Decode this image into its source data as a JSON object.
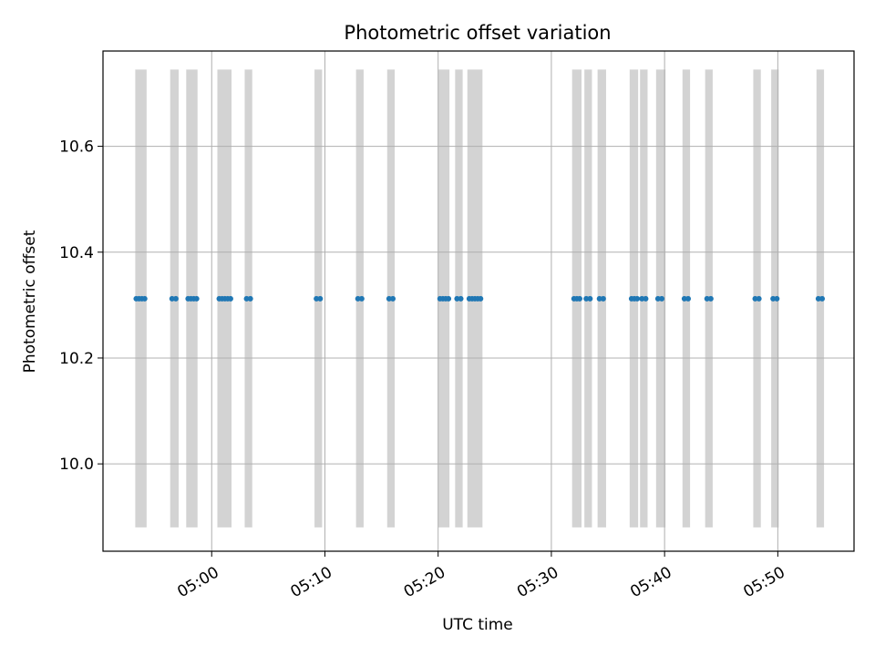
{
  "chart_data": {
    "type": "scatter",
    "title": "Photometric offset variation",
    "xlabel": "UTC time",
    "ylabel": "Photometric offset",
    "x_is_time": true,
    "xlim": [
      "04:50:24",
      "05:56:44"
    ],
    "ylim": [
      9.835,
      10.78
    ],
    "x_ticks": [
      "05:00",
      "05:10",
      "05:20",
      "05:30",
      "05:40",
      "05:50"
    ],
    "y_ticks": [
      10.0,
      10.2,
      10.4,
      10.6
    ],
    "y_tick_labels": [
      "10.0",
      "10.2",
      "10.4",
      "10.6"
    ],
    "grid": true,
    "colors": {
      "points": "#1f77b4",
      "bands": "#d3d3d3",
      "grid": "#b0b0b0"
    },
    "bands_ylim": [
      9.88,
      10.745
    ],
    "bands": [
      {
        "start": "04:53:15",
        "end": "04:54:15"
      },
      {
        "start": "04:56:20",
        "end": "04:57:05"
      },
      {
        "start": "04:57:45",
        "end": "04:58:45"
      },
      {
        "start": "05:00:30",
        "end": "05:01:45"
      },
      {
        "start": "05:02:55",
        "end": "05:03:35"
      },
      {
        "start": "05:09:05",
        "end": "05:09:45"
      },
      {
        "start": "05:12:45",
        "end": "05:13:25"
      },
      {
        "start": "05:15:30",
        "end": "05:16:10"
      },
      {
        "start": "05:20:00",
        "end": "05:21:00"
      },
      {
        "start": "05:21:30",
        "end": "05:22:10"
      },
      {
        "start": "05:22:35",
        "end": "05:23:55"
      },
      {
        "start": "05:31:50",
        "end": "05:32:40"
      },
      {
        "start": "05:32:55",
        "end": "05:33:35"
      },
      {
        "start": "05:34:05",
        "end": "05:34:50"
      },
      {
        "start": "05:36:55",
        "end": "05:37:40"
      },
      {
        "start": "05:37:50",
        "end": "05:38:30"
      },
      {
        "start": "05:39:15",
        "end": "05:40:05"
      },
      {
        "start": "05:41:35",
        "end": "05:42:15"
      },
      {
        "start": "05:43:35",
        "end": "05:44:15"
      },
      {
        "start": "05:47:50",
        "end": "05:48:30"
      },
      {
        "start": "05:49:25",
        "end": "05:50:05"
      },
      {
        "start": "05:53:25",
        "end": "05:54:05"
      }
    ],
    "series": [
      {
        "y_value": 10.312,
        "x": [
          "04:53:20",
          "04:53:35",
          "04:53:50",
          "04:54:05",
          "04:56:30",
          "04:56:50",
          "04:57:55",
          "04:58:10",
          "04:58:25",
          "04:58:40",
          "05:00:40",
          "05:00:55",
          "05:01:10",
          "05:01:25",
          "05:01:40",
          "05:03:05",
          "05:03:25",
          "05:09:15",
          "05:09:35",
          "05:12:55",
          "05:13:15",
          "05:15:40",
          "05:16:00",
          "05:20:10",
          "05:20:25",
          "05:20:40",
          "05:20:55",
          "05:21:40",
          "05:22:00",
          "05:22:45",
          "05:23:00",
          "05:23:15",
          "05:23:30",
          "05:23:45",
          "05:32:00",
          "05:32:15",
          "05:32:30",
          "05:33:05",
          "05:33:25",
          "05:34:15",
          "05:34:35",
          "05:37:05",
          "05:37:20",
          "05:37:35",
          "05:38:00",
          "05:38:20",
          "05:39:25",
          "05:39:45",
          "05:41:45",
          "05:42:05",
          "05:43:45",
          "05:44:05",
          "05:48:00",
          "05:48:20",
          "05:49:35",
          "05:49:55",
          "05:53:35",
          "05:53:55"
        ]
      }
    ]
  }
}
